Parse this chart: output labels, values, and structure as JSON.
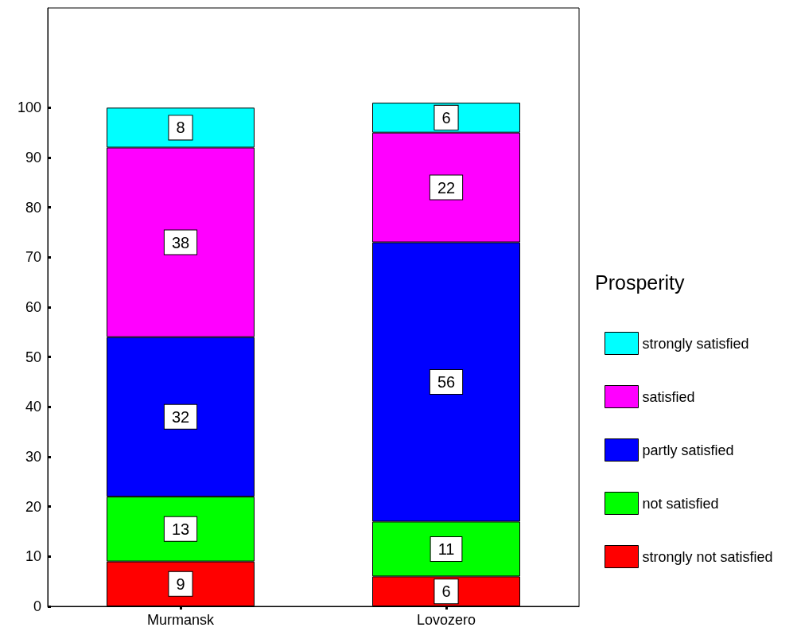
{
  "chart_data": {
    "type": "bar",
    "legend_title": "Prosperity",
    "categories": [
      "Murmansk",
      "Lovozero"
    ],
    "stacked": true,
    "data_labels": true,
    "legend": "right",
    "ylim": [
      0,
      120
    ],
    "yticks": [
      0,
      10,
      20,
      30,
      40,
      50,
      60,
      70,
      80,
      90,
      100
    ],
    "series": [
      {
        "name": "strongly not satisfied",
        "color": "#ff0000",
        "values": [
          9,
          6
        ]
      },
      {
        "name": "not satisfied",
        "color": "#00ff00",
        "values": [
          13,
          11
        ]
      },
      {
        "name": "partly satisfied",
        "color": "#0000ff",
        "values": [
          32,
          56
        ]
      },
      {
        "name": "satisfied",
        "color": "#ff00ff",
        "values": [
          38,
          22
        ]
      },
      {
        "name": "strongly satisfied",
        "color": "#00ffff",
        "values": [
          8,
          6
        ]
      }
    ]
  }
}
